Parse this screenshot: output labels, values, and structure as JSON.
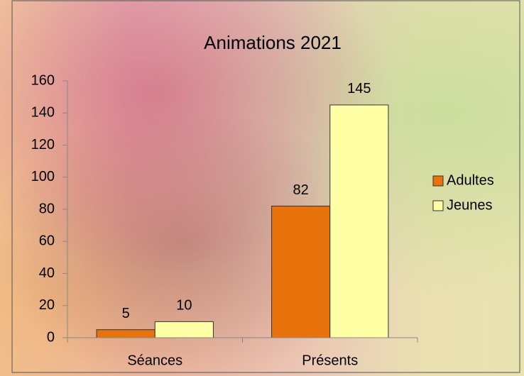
{
  "chart_data": {
    "type": "bar",
    "title": "Animations 2021",
    "categories": [
      "Séances",
      "Présents"
    ],
    "series": [
      {
        "name": "Adultes",
        "color": "#e8730c",
        "values": [
          5,
          82
        ]
      },
      {
        "name": "Jeunes",
        "color": "#ffffa6",
        "values": [
          10,
          145
        ]
      }
    ],
    "ylim": [
      0,
      160
    ],
    "yticks": [
      0,
      20,
      40,
      60,
      80,
      100,
      120,
      140,
      160
    ],
    "grid": false,
    "legend": "right",
    "data_labels": true
  }
}
